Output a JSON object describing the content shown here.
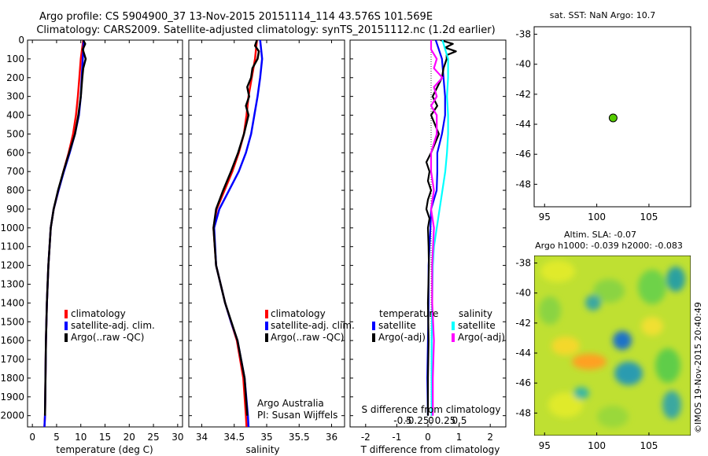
{
  "header": {
    "line1": "Argo profile: CS 5904900_37 13-Nov-2015 20151114_114 43.576S 101.569E",
    "line2": "Climatology: CARS2009. Satellite-adjusted climatology: synTS_20151112.nc (1.2d earlier)"
  },
  "colors": {
    "climatology": "#ff0000",
    "satellite": "#0000ff",
    "argo": "#000000",
    "sal_satellite": "#00ffff",
    "sal_argo": "#ff00ff",
    "float_marker": "#55cc00"
  },
  "depth_axis": {
    "ticks": [
      0,
      100,
      200,
      300,
      400,
      500,
      600,
      700,
      800,
      900,
      1000,
      1100,
      1200,
      1300,
      1400,
      1500,
      1600,
      1700,
      1800,
      1900,
      2000
    ],
    "range": [
      0,
      2060
    ],
    "reversed": true
  },
  "chart_data": [
    {
      "id": "temperature",
      "type": "line",
      "xlabel": "temperature (deg C)",
      "xlim": [
        -1,
        31
      ],
      "xticks": [
        0,
        5,
        10,
        15,
        20,
        25,
        30
      ],
      "xtick_labels": [
        "0",
        "5",
        "10",
        "15",
        "20",
        "25",
        "30"
      ],
      "legend": [
        "climatology",
        "satellite-adj. clim.",
        "Argo(..raw -QC)"
      ],
      "series": [
        {
          "name": "climatology",
          "depth": [
            0,
            100,
            200,
            300,
            400,
            500,
            600,
            700,
            800,
            900,
            1000,
            1200,
            1400,
            1600,
            1800,
            2000,
            2060
          ],
          "values": [
            10.5,
            10.0,
            9.7,
            9.4,
            9.0,
            8.4,
            7.5,
            6.4,
            5.4,
            4.4,
            3.8,
            3.3,
            3.0,
            2.8,
            2.7,
            2.6,
            2.5
          ]
        },
        {
          "name": "satellite-adj. clim.",
          "depth": [
            0,
            100,
            200,
            300,
            400,
            500,
            600,
            700,
            800,
            900,
            1000,
            1200,
            1400,
            1600,
            1800,
            2000,
            2060
          ],
          "values": [
            10.6,
            10.4,
            10.2,
            10.0,
            9.6,
            8.8,
            7.7,
            6.5,
            5.4,
            4.4,
            3.8,
            3.3,
            3.0,
            2.8,
            2.7,
            2.6,
            2.5
          ]
        },
        {
          "name": "Argo(..raw -QC)",
          "depth": [
            0,
            20,
            50,
            100,
            150,
            200,
            300,
            400,
            500,
            600,
            700,
            800,
            900,
            1000,
            1200,
            1400,
            1600,
            1800,
            2000
          ],
          "values": [
            10.5,
            10.9,
            10.4,
            11.0,
            10.5,
            10.3,
            10.0,
            9.5,
            8.8,
            7.6,
            6.4,
            5.3,
            4.4,
            3.8,
            3.3,
            3.0,
            2.8,
            2.7,
            2.6
          ]
        }
      ]
    },
    {
      "id": "salinity",
      "type": "line",
      "xlabel": "salinity",
      "xlim": [
        33.8,
        36.2
      ],
      "xticks": [
        34,
        34.5,
        35,
        35.5,
        36
      ],
      "xtick_labels": [
        "34",
        "34.5",
        "35",
        "35.5",
        "36"
      ],
      "legend": [
        "climatology",
        "satellite-adj. clim.",
        "Argo(..raw -QC)"
      ],
      "annotation": [
        "Argo Australia",
        "PI: Susan Wijffels"
      ],
      "series": [
        {
          "name": "climatology",
          "depth": [
            0,
            100,
            200,
            300,
            400,
            500,
            600,
            700,
            800,
            900,
            1000,
            1200,
            1400,
            1500,
            1600,
            1800,
            2000,
            2060
          ],
          "values": [
            34.85,
            34.82,
            34.77,
            34.72,
            34.69,
            34.65,
            34.57,
            34.47,
            34.35,
            34.23,
            34.18,
            34.22,
            34.36,
            34.45,
            34.54,
            34.64,
            34.68,
            34.69
          ]
        },
        {
          "name": "satellite-adj. clim.",
          "depth": [
            0,
            100,
            200,
            300,
            400,
            500,
            600,
            700,
            800,
            900,
            1000,
            1200,
            1400,
            1500,
            1600,
            1800,
            2000,
            2060
          ],
          "values": [
            34.9,
            34.93,
            34.9,
            34.86,
            34.81,
            34.76,
            34.68,
            34.57,
            34.42,
            34.27,
            34.19,
            34.22,
            34.36,
            34.45,
            34.55,
            34.66,
            34.71,
            34.72
          ]
        },
        {
          "name": "Argo(..raw -QC)",
          "depth": [
            0,
            30,
            60,
            100,
            150,
            200,
            250,
            300,
            350,
            400,
            500,
            600,
            700,
            800,
            900,
            1000,
            1200,
            1400,
            1600,
            1800,
            2000
          ],
          "values": [
            34.85,
            34.82,
            34.88,
            34.86,
            34.78,
            34.76,
            34.7,
            34.73,
            34.68,
            34.72,
            34.65,
            34.56,
            34.45,
            34.33,
            34.22,
            34.18,
            34.22,
            34.36,
            34.55,
            34.66,
            34.7
          ]
        }
      ]
    },
    {
      "id": "difference",
      "type": "line",
      "xlabel": "T difference from climatology",
      "toplabel": "S difference from climatology",
      "xlim": [
        -2.5,
        2.5
      ],
      "xticks": [
        -2,
        -1,
        0,
        1,
        2
      ],
      "xtick_labels": [
        "-2",
        "-1",
        "0",
        "1",
        "2"
      ],
      "s_ticks": [
        -0.5,
        -0.25,
        0,
        0.25,
        0.5
      ],
      "s_tick_labels": [
        "-0.5",
        "-0.25",
        "0",
        "0.25",
        "0.5"
      ],
      "legend_left_title": "temperature",
      "legend_right_title": "salinity",
      "legend_left": [
        "satellite",
        "Argo(-adj)"
      ],
      "legend_right": [
        "satellite",
        "Argo(-adj)"
      ],
      "series": [
        {
          "name": "temperature satellite",
          "depth": [
            0,
            100,
            200,
            300,
            400,
            500,
            600,
            700,
            800,
            900,
            1000,
            1100,
            1200,
            1400,
            1600,
            1800,
            2000
          ],
          "values": [
            0.25,
            0.45,
            0.5,
            0.55,
            0.55,
            0.45,
            0.3,
            0.3,
            0.28,
            0.1,
            0.08,
            0.05,
            0.02,
            0.02,
            0.0,
            -0.02,
            0.0
          ]
        },
        {
          "name": "temperature Argo(-adj)",
          "depth": [
            0,
            20,
            40,
            60,
            80,
            100,
            150,
            200,
            250,
            300,
            350,
            400,
            500,
            600,
            650,
            700,
            750,
            800,
            850,
            900,
            950,
            1000,
            1100,
            1200,
            1400,
            1600,
            1800,
            2000
          ],
          "values": [
            0.4,
            0.8,
            0.55,
            0.9,
            0.6,
            0.6,
            0.5,
            0.45,
            0.3,
            0.15,
            0.3,
            0.1,
            0.35,
            0.1,
            -0.05,
            0.05,
            0.0,
            0.1,
            0.0,
            -0.05,
            0.05,
            0.0,
            0.02,
            0.03,
            0.0,
            0.02,
            0.0,
            0.0
          ]
        },
        {
          "name": "salinity satellite",
          "depth": [
            0,
            100,
            200,
            300,
            400,
            500,
            600,
            700,
            800,
            900,
            1000,
            1100,
            1200,
            1400,
            1600,
            1800,
            2000
          ],
          "values": [
            0.2,
            0.3,
            0.3,
            0.28,
            0.3,
            0.3,
            0.28,
            0.25,
            0.2,
            0.15,
            0.1,
            0.05,
            0.03,
            0.02,
            0.01,
            0.01,
            0.01
          ]
        },
        {
          "name": "salinity Argo(-adj)",
          "depth": [
            0,
            50,
            100,
            150,
            200,
            250,
            300,
            350,
            400,
            500,
            600,
            700,
            800,
            900,
            1000,
            1200,
            1400,
            1600,
            1800,
            2000
          ],
          "values": [
            0.0,
            0.0,
            0.1,
            0.05,
            0.2,
            0.05,
            0.1,
            0.0,
            0.1,
            0.1,
            0.0,
            0.0,
            0.05,
            0.0,
            0.05,
            0.02,
            0.02,
            0.05,
            0.03,
            0.03
          ]
        }
      ]
    },
    {
      "id": "sst-map",
      "type": "scatter",
      "title": "sat. SST: NaN Argo: 10.7",
      "xticks": [
        95,
        100,
        105
      ],
      "yticks": [
        -38,
        -40,
        -42,
        -44,
        -46,
        -48
      ],
      "xlim": [
        94,
        109
      ],
      "ylim": [
        -49.5,
        -37.5
      ],
      "point": {
        "lon": 101.569,
        "lat": -43.576
      }
    },
    {
      "id": "sla-map",
      "type": "heatmap",
      "title1": "Altim. SLA: -0.07",
      "title2": "Argo h1000: -0.039 h2000: -0.083",
      "xticks": [
        95,
        100,
        105
      ],
      "yticks": [
        -38,
        -40,
        -42,
        -44,
        -46,
        -48
      ],
      "xlim": [
        94,
        109
      ],
      "ylim": [
        -49.5,
        -37.5
      ]
    }
  ],
  "footer": {
    "stamp": "©IMOS 19-Nov-2015 20:40:49"
  }
}
